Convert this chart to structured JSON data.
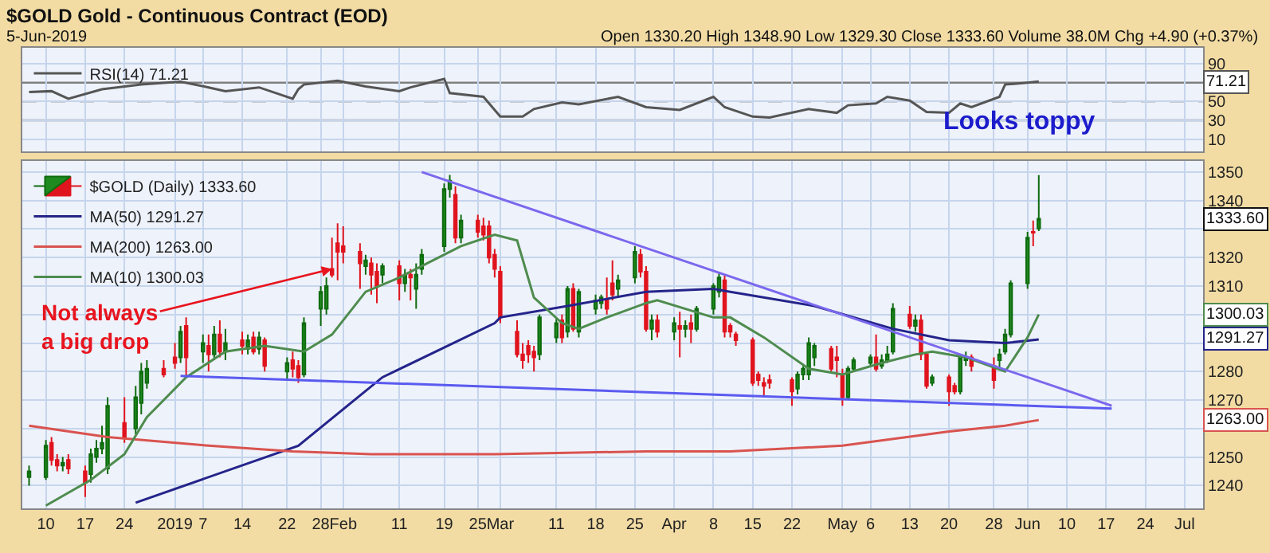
{
  "chart_data": [
    {
      "type": "line",
      "title": "$GOLD Gold - Continuous Contract (EOD)",
      "subtitle": "5-Jun-2019",
      "annotations": [
        "Open 1330.20 High 1348.90 Low 1329.30 Close 1333.60 Volume 38.0M Chg +4.90 (+0.37%)",
        "71.21"
      ],
      "series": [
        {
          "name": "RSI(14) 71.21",
          "color": "#555555",
          "x": [
            "2018-12-07",
            "2018-12-11",
            "2018-12-14",
            "2018-12-20",
            "2018-12-27",
            "2019-01-03",
            "2019-01-08",
            "2019-01-11",
            "2019-01-17",
            "2019-01-23",
            "2019-01-24",
            "2019-01-25",
            "2019-01-31",
            "2019-02-05",
            "2019-02-11",
            "2019-02-13",
            "2019-02-19",
            "2019-02-20",
            "2019-02-26",
            "2019-03-01",
            "2019-03-05",
            "2019-03-07",
            "2019-03-12",
            "2019-03-15",
            "2019-03-22",
            "2019-03-27",
            "2019-04-02",
            "2019-04-08",
            "2019-04-10",
            "2019-04-15",
            "2019-04-18",
            "2019-04-25",
            "2019-04-30",
            "2019-05-02",
            "2019-05-07",
            "2019-05-09",
            "2019-05-13",
            "2019-05-16",
            "2019-05-20",
            "2019-05-22",
            "2019-05-24",
            "2019-05-29",
            "2019-05-30",
            "2019-06-03",
            "2019-06-05"
          ],
          "values": [
            60,
            61,
            53,
            63,
            68,
            71,
            65,
            61,
            65,
            53,
            63,
            68,
            72,
            66,
            61,
            65,
            74,
            59,
            55,
            34,
            34,
            42,
            49,
            47,
            55,
            44,
            41,
            55,
            44,
            34,
            33,
            42,
            38,
            46,
            48,
            55,
            51,
            39,
            38,
            48,
            44,
            55,
            68,
            70,
            71.21
          ]
        }
      ],
      "xlim": [
        "2018-12-05T19:00",
        "2019-07-04T07:00"
      ],
      "ylim": [
        -3,
        107
      ],
      "yticks": [
        10,
        30,
        50,
        90
      ],
      "grid": true,
      "tick_labels": "y",
      "legend": "top left",
      "ref_lines": [
        {
          "axis": "y",
          "value": 70,
          "color": "#808080",
          "line_style": "solid"
        },
        {
          "axis": "y",
          "value": 50,
          "color": "#a0a0a0",
          "line_style": "dashed"
        },
        {
          "axis": "y",
          "value": 30,
          "color": "#808080",
          "line_style": "solid"
        }
      ]
    },
    {
      "type": "candlestick",
      "series": [
        {
          "name": "$GOLD (Daily) 1333.60",
          "type": "candlestick",
          "x": [
            "2018-12-07",
            "2018-12-10",
            "2018-12-11",
            "2018-12-12",
            "2018-12-13",
            "2018-12-14",
            "2018-12-17",
            "2018-12-18",
            "2018-12-19",
            "2018-12-20",
            "2018-12-21",
            "2018-12-24",
            "2018-12-26",
            "2018-12-27",
            "2018-12-28",
            "2018-12-31",
            "2019-01-02",
            "2019-01-03",
            "2019-01-04",
            "2019-01-07",
            "2019-01-08",
            "2019-01-09",
            "2019-01-10",
            "2019-01-11",
            "2019-01-14",
            "2019-01-15",
            "2019-01-16",
            "2019-01-17",
            "2019-01-18",
            "2019-01-22",
            "2019-01-23",
            "2019-01-24",
            "2019-01-25",
            "2019-01-28",
            "2019-01-29",
            "2019-01-30",
            "2019-01-31",
            "2019-02-01",
            "2019-02-04",
            "2019-02-05",
            "2019-02-06",
            "2019-02-07",
            "2019-02-08",
            "2019-02-11",
            "2019-02-12",
            "2019-02-13",
            "2019-02-14",
            "2019-02-15",
            "2019-02-19",
            "2019-02-20",
            "2019-02-21",
            "2019-02-22",
            "2019-02-25",
            "2019-02-26",
            "2019-02-27",
            "2019-02-28",
            "2019-03-01",
            "2019-03-04",
            "2019-03-05",
            "2019-03-06",
            "2019-03-07",
            "2019-03-08",
            "2019-03-11",
            "2019-03-12",
            "2019-03-13",
            "2019-03-14",
            "2019-03-15",
            "2019-03-18",
            "2019-03-19",
            "2019-03-20",
            "2019-03-21",
            "2019-03-22",
            "2019-03-25",
            "2019-03-26",
            "2019-03-27",
            "2019-03-28",
            "2019-03-29",
            "2019-04-01",
            "2019-04-02",
            "2019-04-03",
            "2019-04-04",
            "2019-04-05",
            "2019-04-08",
            "2019-04-09",
            "2019-04-10",
            "2019-04-11",
            "2019-04-12",
            "2019-04-15",
            "2019-04-16",
            "2019-04-17",
            "2019-04-18",
            "2019-04-22",
            "2019-04-23",
            "2019-04-24",
            "2019-04-25",
            "2019-04-26",
            "2019-04-29",
            "2019-04-30",
            "2019-05-01",
            "2019-05-02",
            "2019-05-03",
            "2019-05-06",
            "2019-05-07",
            "2019-05-08",
            "2019-05-09",
            "2019-05-10",
            "2019-05-13",
            "2019-05-14",
            "2019-05-15",
            "2019-05-16",
            "2019-05-17",
            "2019-05-20",
            "2019-05-21",
            "2019-05-22",
            "2019-05-23",
            "2019-05-24",
            "2019-05-28",
            "2019-05-29",
            "2019-05-30",
            "2019-05-31",
            "2019-06-03",
            "2019-06-04",
            "2019-06-05"
          ],
          "ohlc": [
            [
              1243,
              1247,
              1240,
              1245
            ],
            [
              1243,
              1256,
              1242,
              1254
            ],
            [
              1255,
              1257,
              1247,
              1249
            ],
            [
              1249,
              1251,
              1245,
              1247
            ],
            [
              1247,
              1250,
              1245,
              1248
            ],
            [
              1249,
              1251,
              1244,
              1246
            ],
            [
              1245,
              1247,
              1236,
              1241
            ],
            [
              1244,
              1253,
              1241,
              1251
            ],
            [
              1250,
              1256,
              1248,
              1253
            ],
            [
              1253,
              1261,
              1251,
              1255
            ],
            [
              1246,
              1271,
              1244,
              1268
            ],
            [
              1262,
              1271,
              1255,
              1257
            ],
            [
              1260,
              1275,
              1258,
              1271
            ],
            [
              1269,
              1283,
              1265,
              1280
            ],
            [
              1276,
              1284,
              1274,
              1281
            ],
            [
              1281,
              1284,
              1278,
              1279
            ],
            [
              1285,
              1290,
              1281,
              1283
            ],
            [
              1285,
              1296,
              1283,
              1294
            ],
            [
              1296,
              1299,
              1278,
              1285
            ],
            [
              1287,
              1293,
              1283,
              1290
            ],
            [
              1289,
              1293,
              1280,
              1286
            ],
            [
              1286,
              1296,
              1284,
              1293
            ],
            [
              1293,
              1298,
              1285,
              1287
            ],
            [
              1287,
              1295,
              1284,
              1290
            ],
            [
              1291,
              1294,
              1286,
              1289
            ],
            [
              1288,
              1293,
              1286,
              1291
            ],
            [
              1292,
              1294,
              1286,
              1287
            ],
            [
              1288,
              1294,
              1286,
              1292
            ],
            [
              1291,
              1292,
              1280,
              1282
            ],
            [
              1280,
              1285,
              1277,
              1283
            ],
            [
              1284,
              1287,
              1278,
              1281
            ],
            [
              1282,
              1284,
              1276,
              1278
            ],
            [
              1279,
              1299,
              1278,
              1297
            ],
            [
              1302,
              1310,
              1296,
              1308
            ],
            [
              1302,
              1313,
              1300,
              1310
            ],
            [
              1316,
              1327,
              1313,
              1314
            ],
            [
              1325,
              1332,
              1312,
              1322
            ],
            [
              1324,
              1331,
              1318,
              1322
            ],
            [
              1322,
              1325,
              1309,
              1318
            ],
            [
              1317,
              1321,
              1314,
              1319
            ],
            [
              1318,
              1320,
              1307,
              1314
            ],
            [
              1315,
              1318,
              1304,
              1310
            ],
            [
              1314,
              1318,
              1311,
              1317
            ],
            [
              1317,
              1319,
              1305,
              1311
            ],
            [
              1311,
              1316,
              1308,
              1314
            ],
            [
              1314,
              1316,
              1305,
              1313
            ],
            [
              1309,
              1318,
              1302,
              1314
            ],
            [
              1316,
              1323,
              1314,
              1321
            ],
            [
              1324,
              1346,
              1322,
              1344
            ],
            [
              1344,
              1349,
              1341,
              1347
            ],
            [
              1342,
              1345,
              1325,
              1327
            ],
            [
              1327,
              1335,
              1325,
              1333
            ],
            [
              1333,
              1335,
              1327,
              1329
            ],
            [
              1331,
              1334,
              1326,
              1328
            ],
            [
              1331,
              1333,
              1318,
              1320
            ],
            [
              1321,
              1323,
              1313,
              1316
            ],
            [
              1315,
              1317,
              1297,
              1299
            ],
            [
              1294,
              1298,
              1285,
              1286
            ],
            [
              1286,
              1290,
              1281,
              1284
            ],
            [
              1289,
              1291,
              1283,
              1286
            ],
            [
              1287,
              1289,
              1280,
              1285
            ],
            [
              1286,
              1300,
              1284,
              1299
            ],
            [
              1292,
              1299,
              1290,
              1297
            ],
            [
              1298,
              1300,
              1290,
              1292
            ],
            [
              1294,
              1310,
              1292,
              1309
            ],
            [
              1309,
              1311,
              1294,
              1295
            ],
            [
              1294,
              1309,
              1292,
              1308
            ],
            [
              1302,
              1307,
              1300,
              1305
            ],
            [
              1304,
              1307,
              1302,
              1306
            ],
            [
              1305,
              1313,
              1300,
              1302
            ],
            [
              1311,
              1319,
              1305,
              1307
            ],
            [
              1309,
              1314,
              1306,
              1312
            ],
            [
              1313,
              1324,
              1311,
              1322
            ],
            [
              1321,
              1323,
              1313,
              1315
            ],
            [
              1315,
              1317,
              1294,
              1295
            ],
            [
              1295,
              1300,
              1291,
              1298
            ],
            [
              1298,
              1300,
              1292,
              1294
            ],
            [
              1294,
              1299,
              1291,
              1297
            ],
            [
              1296,
              1301,
              1285,
              1295
            ],
            [
              1295,
              1298,
              1292,
              1296
            ],
            [
              1297,
              1300,
              1290,
              1295
            ],
            [
              1295,
              1303,
              1294,
              1302
            ],
            [
              1302,
              1311,
              1300,
              1310
            ],
            [
              1308,
              1315,
              1306,
              1313
            ],
            [
              1312,
              1314,
              1292,
              1294
            ],
            [
              1296,
              1297,
              1292,
              1294
            ],
            [
              1293,
              1294,
              1289,
              1291
            ],
            [
              1291,
              1292,
              1275,
              1276
            ],
            [
              1279,
              1280,
              1275,
              1277
            ],
            [
              1276,
              1278,
              1271,
              1275
            ],
            [
              1277,
              1279,
              1274,
              1276
            ],
            [
              1277,
              1278,
              1268,
              1273
            ],
            [
              1274,
              1280,
              1272,
              1279
            ],
            [
              1279,
              1282,
              1277,
              1281
            ],
            [
              1279,
              1292,
              1277,
              1290
            ],
            [
              1285,
              1290,
              1282,
              1289
            ],
            [
              1288,
              1289,
              1280,
              1281
            ],
            [
              1285,
              1289,
              1278,
              1284
            ],
            [
              1279,
              1281,
              1268,
              1271
            ],
            [
              1271,
              1282,
              1270,
              1281
            ],
            [
              1281,
              1285,
              1280,
              1284
            ],
            [
              1283,
              1286,
              1282,
              1285
            ],
            [
              1285,
              1293,
              1280,
              1281
            ],
            [
              1282,
              1286,
              1281,
              1284
            ],
            [
              1284,
              1289,
              1283,
              1286
            ],
            [
              1287,
              1304,
              1286,
              1302
            ],
            [
              1300,
              1303,
              1295,
              1296
            ],
            [
              1296,
              1300,
              1294,
              1298
            ],
            [
              1298,
              1300,
              1284,
              1286
            ],
            [
              1286,
              1287,
              1274,
              1275
            ],
            [
              1276,
              1279,
              1275,
              1278
            ],
            [
              1278,
              1279,
              1268,
              1273
            ],
            [
              1275,
              1276,
              1272,
              1273
            ],
            [
              1273,
              1286,
              1272,
              1285
            ],
            [
              1284,
              1287,
              1282,
              1285
            ],
            [
              1285,
              1286,
              1280,
              1282
            ],
            [
              1282,
              1285,
              1274,
              1277
            ],
            [
              1284,
              1288,
              1281,
              1286
            ],
            [
              1287,
              1295,
              1286,
              1293
            ],
            [
              1293,
              1312,
              1292,
              1311
            ],
            [
              1311,
              1329,
              1309,
              1327
            ],
            [
              1329,
              1333,
              1324,
              1328.7
            ],
            [
              1330.2,
              1348.9,
              1329.3,
              1333.6
            ]
          ]
        },
        {
          "name": "MA(50) 1291.27",
          "type": "line",
          "color": "#24248a",
          "x": [
            "2018-12-26",
            "2019-01-24",
            "2019-02-08",
            "2019-02-28",
            "2019-03-01",
            "2019-03-13",
            "2019-03-27",
            "2019-04-08",
            "2019-04-11",
            "2019-04-26",
            "2019-05-10",
            "2019-05-20",
            "2019-05-30",
            "2019-06-05"
          ],
          "values": [
            1234,
            1254,
            1278,
            1297,
            1299,
            1303,
            1308,
            1309,
            1308,
            1303,
            1295,
            1291,
            1290,
            1291.27
          ]
        },
        {
          "name": "MA(200) 1263.00",
          "type": "line",
          "color": "#d9534f",
          "x": [
            "2018-12-07",
            "2018-12-21",
            "2019-01-08",
            "2019-01-23",
            "2019-02-06",
            "2019-02-28",
            "2019-03-27",
            "2019-04-11",
            "2019-05-01",
            "2019-05-20",
            "2019-05-30",
            "2019-06-05"
          ],
          "values": [
            1261,
            1257,
            1254,
            1252,
            1251,
            1251,
            1252,
            1252,
            1254,
            1259,
            1261,
            1263
          ]
        },
        {
          "name": "MA(10) 1300.03",
          "type": "line",
          "color": "#4e8c4e",
          "x": [
            "2018-12-10",
            "2018-12-18",
            "2018-12-24",
            "2018-12-28",
            "2019-01-04",
            "2019-01-11",
            "2019-01-18",
            "2019-01-25",
            "2019-01-30",
            "2019-02-05",
            "2019-02-11",
            "2019-02-15",
            "2019-02-22",
            "2019-02-28",
            "2019-03-04",
            "2019-03-07",
            "2019-03-12",
            "2019-03-15",
            "2019-03-20",
            "2019-03-27",
            "2019-03-29",
            "2019-04-08",
            "2019-04-11",
            "2019-04-17",
            "2019-04-25",
            "2019-05-01",
            "2019-05-08",
            "2019-05-14",
            "2019-05-17",
            "2019-05-23",
            "2019-05-30",
            "2019-06-03",
            "2019-06-05"
          ],
          "values": [
            1233,
            1242,
            1251,
            1264,
            1278,
            1287,
            1289,
            1287,
            1293,
            1308,
            1313,
            1317,
            1324,
            1328,
            1326,
            1306,
            1297,
            1295,
            1299,
            1304,
            1305,
            1299,
            1299,
            1292,
            1281,
            1279,
            1283,
            1286,
            1287,
            1285,
            1280,
            1292,
            1300.03
          ]
        },
        {
          "type": "line",
          "color": "#7b68ee",
          "x": [
            "2019-02-15",
            "2019-06-18"
          ],
          "values": [
            1350,
            1268
          ]
        },
        {
          "type": "line",
          "color": "#5a5af0",
          "x": [
            "2019-01-03",
            "2019-06-18"
          ],
          "values": [
            1278.5,
            1267
          ]
        }
      ],
      "annotations": [
        {
          "text": "Not always a big drop",
          "x": "2019-01-30",
          "y": 1316
        },
        {
          "text": "Looks toppy",
          "x": "2019-06-05",
          "y": 1337
        },
        "1333.60",
        "1291.27",
        "1263.00",
        "1300.03"
      ],
      "xlim": [
        "2018-12-05T19:00",
        "2019-07-04T07:00"
      ],
      "xticks": [
        {
          "value": "2018-12-10",
          "label": "10"
        },
        {
          "value": "2018-12-17",
          "label": "17"
        },
        {
          "value": "2018-12-24",
          "label": "24"
        },
        {
          "value": "2019-01-02",
          "label": "2019"
        },
        {
          "value": "2019-01-07",
          "label": "7"
        },
        {
          "value": "2019-01-14",
          "label": "14"
        },
        {
          "value": "2019-01-22",
          "label": "22"
        },
        {
          "value": "2019-01-28",
          "label": "28"
        },
        {
          "value": "2019-02-01",
          "label": "Feb"
        },
        {
          "value": "2019-02-11",
          "label": "11"
        },
        {
          "value": "2019-02-19",
          "label": "19"
        },
        {
          "value": "2019-02-25",
          "label": "25"
        },
        {
          "value": "2019-03-01",
          "label": "Mar"
        },
        {
          "value": "2019-03-11",
          "label": "11"
        },
        {
          "value": "2019-03-18",
          "label": "18"
        },
        {
          "value": "2019-03-25",
          "label": "25"
        },
        {
          "value": "2019-04-01",
          "label": "Apr"
        },
        {
          "value": "2019-04-08",
          "label": "8"
        },
        {
          "value": "2019-04-15",
          "label": "15"
        },
        {
          "value": "2019-04-22",
          "label": "22"
        },
        {
          "value": "2019-05-01",
          "label": "May"
        },
        {
          "value": "2019-05-06",
          "label": "6"
        },
        {
          "value": "2019-05-13",
          "label": "13"
        },
        {
          "value": "2019-05-20",
          "label": "20"
        },
        {
          "value": "2019-05-28",
          "label": "28"
        },
        {
          "value": "2019-06-03",
          "label": "Jun"
        },
        {
          "value": "2019-06-10",
          "label": "10"
        },
        {
          "value": "2019-06-17",
          "label": "17"
        },
        {
          "value": "2019-06-24",
          "label": "24"
        },
        {
          "value": "2019-07-01",
          "label": "Jul"
        }
      ],
      "ylim": [
        1232,
        1354
      ],
      "yticks": [
        1240,
        1250,
        {
          "value": 1260,
          "label": null
        },
        1270,
        1280,
        {
          "value": 1290,
          "label": null
        },
        {
          "value": 1300,
          "label": null
        },
        1310,
        1320,
        {
          "value": 1330,
          "label": null
        },
        1340,
        1350
      ],
      "grid": true,
      "legend": "top left"
    }
  ]
}
